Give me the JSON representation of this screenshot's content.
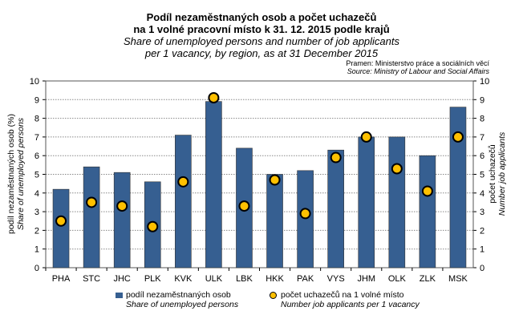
{
  "title": "Podíl nezaměstnaných osob a počet uchazečů",
  "title2": "na 1 volné pracovní místo k 31. 12. 2015 podle krajů",
  "subtitle": "Share of unemployed persons and number of job applicants",
  "subtitle2": "per 1 vacancy, by region, as at 31 December 2015",
  "source_cz": "Pramen: Ministerstvo práce a sociálních věcí",
  "source_en": "Source: Ministry of Labour and Social Affairs",
  "chart_data": {
    "type": "bar+scatter",
    "categories": [
      "PHA",
      "STC",
      "JHC",
      "PLK",
      "KVK",
      "ULK",
      "LBK",
      "HKK",
      "PAK",
      "VYS",
      "JHM",
      "OLK",
      "ZLK",
      "MSK"
    ],
    "series": [
      {
        "name": "podíl nezaměstnaných osob",
        "name_en": "Share of unemployed persons",
        "type": "bar",
        "axis": "left",
        "color": "#365F91",
        "values": [
          4.2,
          5.4,
          5.1,
          4.6,
          7.1,
          8.9,
          6.4,
          5.0,
          5.2,
          6.3,
          7.0,
          7.0,
          6.0,
          8.6
        ]
      },
      {
        "name": "počet uchazečů na 1 volné místo",
        "name_en": "Number job applicants per 1 vacancy",
        "type": "scatter",
        "axis": "right",
        "color": "#FFC000",
        "values": [
          2.5,
          3.5,
          3.3,
          2.2,
          4.6,
          9.1,
          3.3,
          4.7,
          2.9,
          5.9,
          7.0,
          5.3,
          4.1,
          7.0
        ]
      }
    ],
    "ylabel_left": "podíl nezaměstnaných osob (%)",
    "ylabel_left_en": "Share of unemployed persons",
    "ylabel_right": "počet uchazečů",
    "ylabel_right_en": "Number job applicants",
    "ylim": [
      0,
      10
    ],
    "yticks": [
      0,
      1,
      2,
      3,
      4,
      5,
      6,
      7,
      8,
      9,
      10
    ],
    "grid": true,
    "legend": "bottom"
  }
}
